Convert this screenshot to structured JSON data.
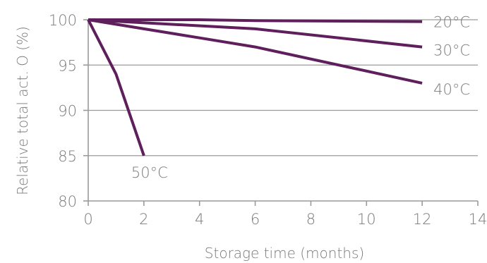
{
  "chart_data": {
    "type": "line",
    "title": "",
    "xlabel": "Storage time (months)",
    "ylabel": "Relative total act. O (%)",
    "xlim": [
      0,
      14
    ],
    "ylim": [
      80,
      100
    ],
    "xticks": [
      0,
      2,
      4,
      6,
      8,
      10,
      12,
      14
    ],
    "yticks": [
      80,
      85,
      90,
      95,
      100
    ],
    "grid": "horizontal",
    "legend": "inline labels",
    "line_color": "#5e1f5c",
    "series": [
      {
        "name": "20°C",
        "x": [
          0,
          2,
          4,
          6,
          12
        ],
        "y": [
          100,
          100,
          100,
          99.9,
          99.8
        ]
      },
      {
        "name": "30°C",
        "x": [
          0,
          6,
          12
        ],
        "y": [
          100,
          99,
          97
        ]
      },
      {
        "name": "40°C",
        "x": [
          0,
          2,
          4,
          6,
          12
        ],
        "y": [
          100,
          99,
          98,
          97,
          93
        ]
      },
      {
        "name": "50°C",
        "x": [
          0,
          1,
          2
        ],
        "y": [
          100,
          94,
          85
        ]
      }
    ]
  }
}
